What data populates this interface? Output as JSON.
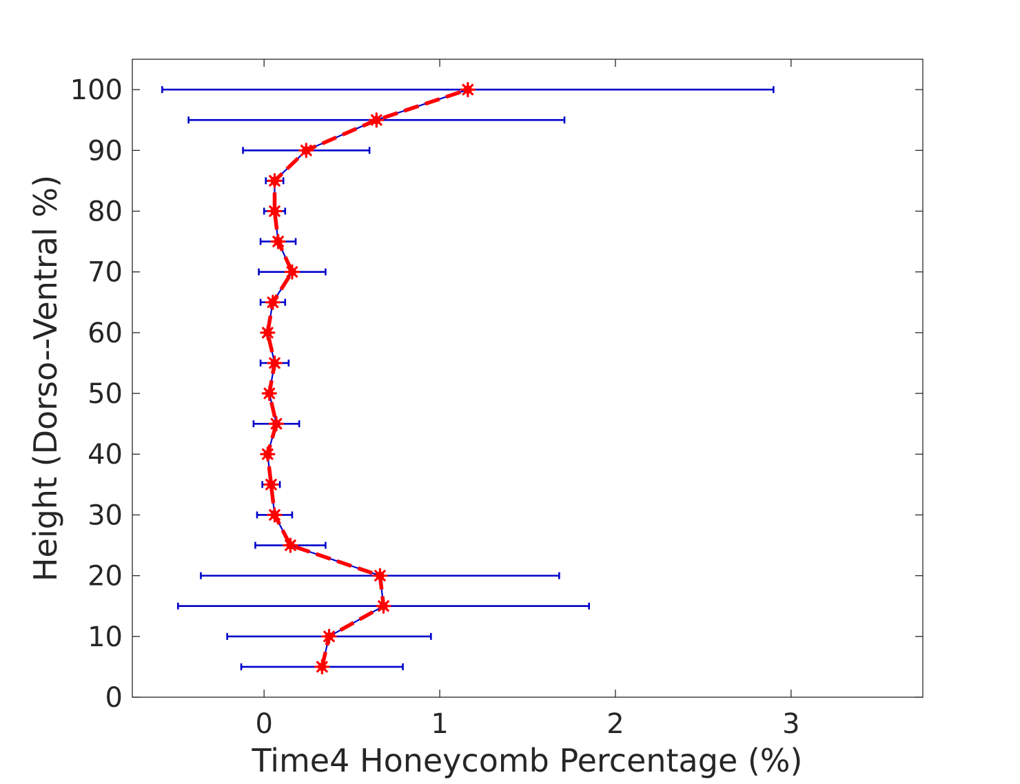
{
  "chart_data": {
    "type": "line",
    "title": "",
    "xlabel": "Time4 Honeycomb Percentage (%)",
    "ylabel": "Height (Dorso--Ventral %)",
    "xlim": [
      -0.75,
      3.75
    ],
    "ylim": [
      0,
      105
    ],
    "xticks": [
      0,
      1,
      2,
      3
    ],
    "yticks": [
      0,
      10,
      20,
      30,
      40,
      50,
      60,
      70,
      80,
      90,
      100
    ],
    "grid": false,
    "legend": "none",
    "colors": {
      "mean_line": "#ff0000",
      "markers": "#ff0000",
      "error_bars": "#0000cc",
      "axes": "#262626"
    },
    "series": [
      {
        "y": [
          5,
          10,
          15,
          20,
          25,
          30,
          35,
          40,
          45,
          50,
          55,
          60,
          65,
          70,
          75,
          80,
          85,
          90,
          95,
          100
        ],
        "x": [
          0.33,
          0.37,
          0.68,
          0.66,
          0.15,
          0.06,
          0.04,
          0.02,
          0.07,
          0.03,
          0.06,
          0.02,
          0.05,
          0.16,
          0.08,
          0.06,
          0.06,
          0.24,
          0.64,
          1.16
        ],
        "x_error": [
          0.46,
          0.58,
          1.17,
          1.02,
          0.2,
          0.1,
          0.05,
          0.01,
          0.13,
          0.01,
          0.08,
          0.01,
          0.07,
          0.19,
          0.1,
          0.06,
          0.05,
          0.36,
          1.07,
          1.74
        ]
      }
    ]
  }
}
